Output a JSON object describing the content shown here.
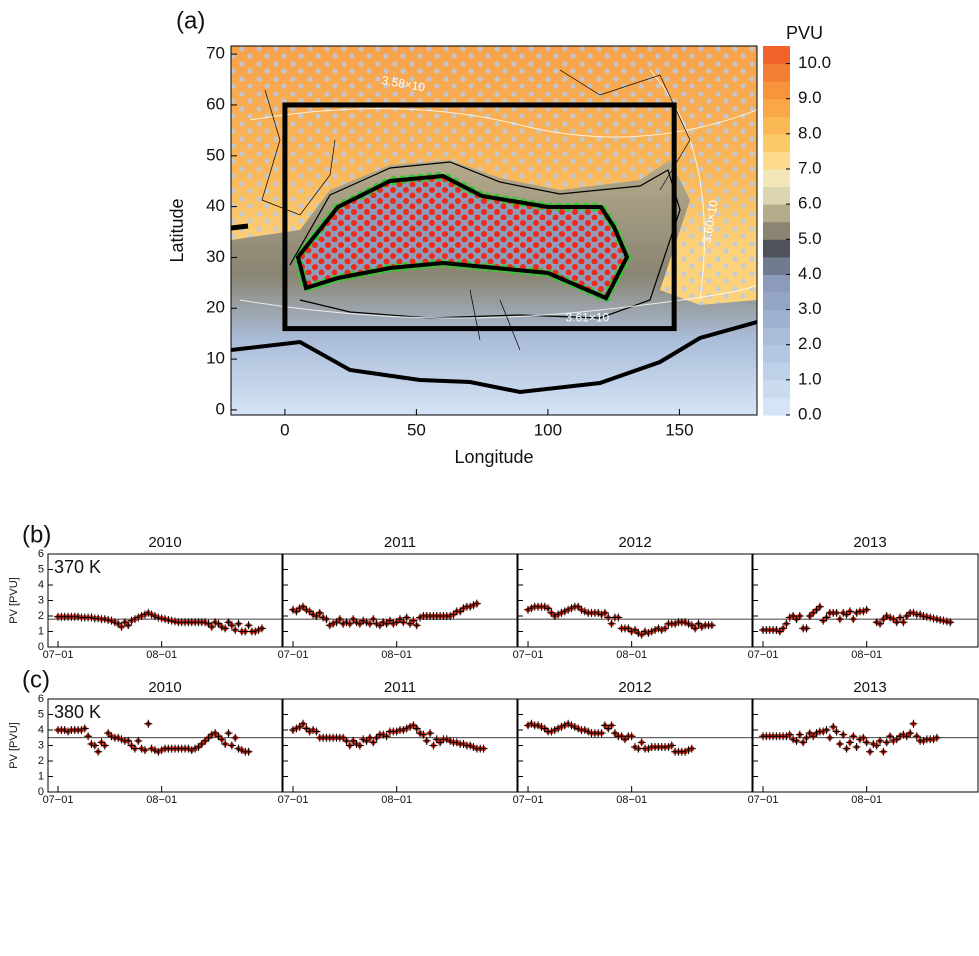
{
  "chart_data": [
    {
      "type": "map",
      "panel_label": "(a)",
      "xlabel": "Longitude",
      "ylabel": "Latitude",
      "xlim": [
        -20.5,
        179.5
      ],
      "ylim": [
        -1,
        71.6
      ],
      "xticks": [
        0,
        50,
        100,
        150
      ],
      "yticks": [
        0,
        10,
        20,
        30,
        40,
        50,
        60,
        70
      ],
      "box": {
        "lon": [
          0,
          148
        ],
        "lat": [
          16,
          60
        ]
      },
      "contour_labels": [
        {
          "text": "3.58×10",
          "lon": 45,
          "lat": 64,
          "rotate": 10
        },
        {
          "text": "3.60×10",
          "lon": 162,
          "lat": 37,
          "rotate": -80
        },
        {
          "text": "3.61×10",
          "lon": 115,
          "lat": 18,
          "rotate": 0
        }
      ],
      "colorbar": {
        "label": "PVU",
        "levels": [
          0,
          0.5,
          1,
          1.5,
          2,
          2.5,
          3,
          3.5,
          4,
          4.5,
          5,
          5.5,
          6,
          6.5,
          7,
          7.5,
          8,
          8.5,
          9,
          9.5,
          10,
          10.5
        ],
        "colors": [
          "#d5e4f6",
          "#cadbf0",
          "#bfd1e9",
          "#b4c6e1",
          "#aabcd8",
          "#9fb1cf",
          "#95a6c4",
          "#8b9bb9",
          "#707b90",
          "#4f5259",
          "#8a8573",
          "#b5ab8c",
          "#ddd4b2",
          "#f3e7b8",
          "#fdda8e",
          "#fbca68",
          "#fab955",
          "#f9a747",
          "#f7943c",
          "#f47e32",
          "#f1632a"
        ],
        "ticks": [
          {
            "value": 0,
            "label": "0.0"
          },
          {
            "value": 1,
            "label": "1.0"
          },
          {
            "value": 2,
            "label": "2.0"
          },
          {
            "value": 3,
            "label": "3.0"
          },
          {
            "value": 4,
            "label": "4.0"
          },
          {
            "value": 5,
            "label": "5.0"
          },
          {
            "value": 6,
            "label": "6.0"
          },
          {
            "value": 7,
            "label": "7.0"
          },
          {
            "value": 8,
            "label": "8.0"
          },
          {
            "value": 9,
            "label": "9.0"
          },
          {
            "value": 10,
            "label": "10.0"
          }
        ]
      }
    },
    {
      "type": "scatter",
      "panel_label": "(b)",
      "level": "370 K",
      "ylabel": "PV [PVU]",
      "x": [
        0,
        1,
        2,
        3,
        4,
        5,
        6,
        7,
        8,
        9,
        10,
        11,
        12,
        13,
        14,
        15,
        16,
        17,
        18,
        19,
        20,
        21,
        22,
        23,
        24,
        25,
        26,
        27,
        28,
        29,
        30,
        31,
        32,
        33,
        34,
        35,
        36,
        37,
        38,
        39,
        40,
        41,
        42,
        43,
        44,
        45,
        46,
        47,
        48,
        49,
        50,
        51,
        52,
        53,
        54,
        55,
        56,
        57,
        58,
        59,
        60,
        61
      ],
      "xlim": [
        -3,
        67
      ],
      "xticks": [
        {
          "value": 0,
          "label": "07−01"
        },
        {
          "value": 31,
          "label": "08−01"
        }
      ],
      "ylim": [
        0,
        6
      ],
      "yticks": [
        0,
        1,
        2,
        3,
        4,
        5,
        6
      ],
      "reference_line": 1.8,
      "marker_color": "#d7301f",
      "subplots": [
        {
          "title": "2010",
          "values": [
            1.95,
            1.95,
            1.95,
            1.95,
            1.95,
            1.95,
            1.95,
            1.9,
            1.9,
            1.9,
            1.9,
            1.85,
            1.85,
            1.8,
            1.8,
            1.75,
            1.7,
            1.6,
            1.5,
            1.3,
            1.6,
            1.4,
            1.7,
            1.8,
            1.9,
            2.0,
            2.1,
            2.2,
            2.1,
            2.0,
            1.9,
            1.85,
            1.8,
            1.75,
            1.7,
            1.65,
            1.6,
            1.6,
            1.6,
            1.6,
            1.6,
            1.6,
            1.6,
            1.6,
            1.6,
            1.5,
            1.3,
            1.6,
            1.5,
            1.3,
            1.2,
            1.6,
            1.4,
            1.1,
            1.5,
            1.0,
            1.0,
            1.4,
            1.0,
            1.0,
            1.1,
            1.2
          ]
        },
        {
          "title": "2011",
          "values": [
            2.4,
            2.3,
            2.5,
            2.6,
            2.4,
            2.3,
            2.1,
            2.0,
            2.2,
            1.9,
            1.8,
            1.4,
            1.5,
            1.6,
            1.8,
            1.5,
            1.6,
            1.5,
            1.8,
            1.6,
            1.5,
            1.7,
            1.6,
            1.5,
            1.8,
            1.5,
            1.4,
            1.6,
            1.5,
            1.7,
            1.5,
            1.6,
            1.8,
            1.6,
            1.9,
            1.5,
            1.7,
            1.4,
            1.9,
            2.0,
            2.0,
            2.0,
            2.0,
            2.0,
            2.0,
            2.0,
            2.0,
            2.0,
            2.1,
            2.3,
            2.3,
            2.5,
            2.6,
            2.6,
            2.7,
            2.8,
            null,
            null,
            null,
            null,
            null,
            null
          ]
        },
        {
          "title": "2012",
          "values": [
            2.4,
            2.5,
            2.6,
            2.6,
            2.6,
            2.6,
            2.5,
            2.2,
            2.0,
            2.1,
            2.2,
            2.3,
            2.4,
            2.5,
            2.6,
            2.6,
            2.4,
            2.3,
            2.2,
            2.2,
            2.2,
            2.2,
            2.1,
            2.2,
            1.9,
            1.5,
            1.9,
            1.9,
            1.2,
            1.2,
            1.2,
            1.0,
            1.1,
            0.9,
            0.8,
            1.0,
            0.9,
            1.0,
            1.1,
            1.2,
            1.1,
            1.2,
            1.5,
            1.5,
            1.5,
            1.6,
            1.6,
            1.6,
            1.5,
            1.4,
            1.2,
            1.5,
            1.3,
            1.4,
            1.4,
            1.4,
            null,
            null,
            null,
            null,
            null,
            null
          ]
        },
        {
          "title": "2013",
          "values": [
            1.1,
            1.1,
            1.1,
            1.1,
            1.1,
            1.0,
            1.2,
            1.5,
            1.9,
            2.0,
            1.8,
            2.0,
            1.2,
            1.2,
            2.0,
            2.2,
            2.4,
            2.6,
            1.7,
            1.9,
            2.2,
            2.2,
            2.2,
            1.8,
            2.2,
            2.1,
            2.3,
            1.8,
            2.2,
            2.3,
            2.3,
            2.4,
            null,
            null,
            1.6,
            1.5,
            1.8,
            2.0,
            1.9,
            1.8,
            1.6,
            1.9,
            1.6,
            2.0,
            2.2,
            2.2,
            2.1,
            2.1,
            2.0,
            1.95,
            1.9,
            1.85,
            1.8,
            1.75,
            1.7,
            1.65,
            1.6,
            null,
            null,
            null,
            null,
            null
          ]
        }
      ]
    },
    {
      "type": "scatter",
      "panel_label": "(c)",
      "level": "380 K",
      "ylabel": "PV [PVU]",
      "x": [
        0,
        1,
        2,
        3,
        4,
        5,
        6,
        7,
        8,
        9,
        10,
        11,
        12,
        13,
        14,
        15,
        16,
        17,
        18,
        19,
        20,
        21,
        22,
        23,
        24,
        25,
        26,
        27,
        28,
        29,
        30,
        31,
        32,
        33,
        34,
        35,
        36,
        37,
        38,
        39,
        40,
        41,
        42,
        43,
        44,
        45,
        46,
        47,
        48,
        49,
        50,
        51,
        52,
        53,
        54,
        55,
        56,
        57,
        58,
        59,
        60,
        61
      ],
      "xlim": [
        -3,
        67
      ],
      "xticks": [
        {
          "value": 0,
          "label": "07−01"
        },
        {
          "value": 31,
          "label": "08−01"
        }
      ],
      "ylim": [
        0,
        6
      ],
      "yticks": [
        0,
        1,
        2,
        3,
        4,
        5,
        6
      ],
      "reference_line": 3.5,
      "marker_color": "#d7301f",
      "subplots": [
        {
          "title": "2010",
          "values": [
            4.0,
            4.0,
            4.0,
            3.9,
            4.0,
            4.0,
            4.0,
            4.0,
            4.1,
            3.6,
            3.1,
            3.0,
            2.6,
            3.2,
            3.0,
            3.8,
            3.6,
            3.5,
            3.5,
            3.4,
            3.3,
            3.3,
            3.0,
            2.8,
            3.3,
            2.8,
            2.7,
            4.4,
            2.8,
            2.7,
            2.6,
            2.7,
            2.8,
            2.8,
            2.8,
            2.8,
            2.8,
            2.8,
            2.8,
            2.8,
            2.7,
            2.8,
            2.9,
            3.1,
            3.3,
            3.5,
            3.7,
            3.8,
            3.6,
            3.4,
            3.1,
            3.8,
            3.0,
            3.5,
            2.8,
            2.7,
            2.6,
            2.6,
            null,
            null,
            null,
            null
          ]
        },
        {
          "title": "2011",
          "values": [
            4.0,
            4.1,
            4.2,
            4.4,
            4.1,
            3.9,
            4.0,
            3.9,
            3.5,
            3.5,
            3.5,
            3.5,
            3.5,
            3.5,
            3.5,
            3.5,
            3.3,
            3.0,
            3.3,
            3.1,
            3.0,
            3.4,
            3.3,
            3.5,
            3.2,
            3.5,
            3.7,
            3.7,
            3.6,
            3.9,
            3.9,
            3.9,
            4.0,
            4.0,
            4.1,
            4.2,
            4.3,
            4.1,
            3.8,
            3.7,
            3.3,
            3.8,
            3.0,
            3.4,
            3.2,
            3.4,
            3.4,
            3.3,
            3.2,
            3.2,
            3.1,
            3.1,
            3.0,
            3.0,
            2.9,
            2.8,
            2.8,
            2.8,
            null,
            null,
            null,
            null
          ]
        },
        {
          "title": "2012",
          "values": [
            4.3,
            4.4,
            4.3,
            4.3,
            4.2,
            4.1,
            3.9,
            3.9,
            4.0,
            4.1,
            4.2,
            4.3,
            4.4,
            4.3,
            4.2,
            4.1,
            4.0,
            4.0,
            3.9,
            3.8,
            3.8,
            3.8,
            3.8,
            4.3,
            4.1,
            4.3,
            3.8,
            3.6,
            3.6,
            3.4,
            3.6,
            3.6,
            2.9,
            2.8,
            3.2,
            2.8,
            2.8,
            2.9,
            2.9,
            2.9,
            2.9,
            2.9,
            2.9,
            3.0,
            2.6,
            2.6,
            2.6,
            2.6,
            2.7,
            2.8,
            null,
            null,
            null,
            null,
            null,
            null,
            null,
            null,
            null,
            null,
            null,
            null
          ]
        },
        {
          "title": "2013",
          "values": [
            3.6,
            3.6,
            3.6,
            3.6,
            3.6,
            3.6,
            3.6,
            3.6,
            3.7,
            3.4,
            3.3,
            3.7,
            3.2,
            3.5,
            3.8,
            3.6,
            3.8,
            3.9,
            3.9,
            4.0,
            3.5,
            4.2,
            3.9,
            3.1,
            3.7,
            2.8,
            3.2,
            3.6,
            2.9,
            3.4,
            3.5,
            3.2,
            2.6,
            3.1,
            3.0,
            3.3,
            2.6,
            3.2,
            3.6,
            3.3,
            3.4,
            3.6,
            3.7,
            3.6,
            3.8,
            4.4,
            3.6,
            3.3,
            3.3,
            3.4,
            3.4,
            3.4,
            3.5,
            null,
            null,
            null,
            null,
            null,
            null,
            null,
            null,
            null
          ]
        }
      ]
    }
  ]
}
